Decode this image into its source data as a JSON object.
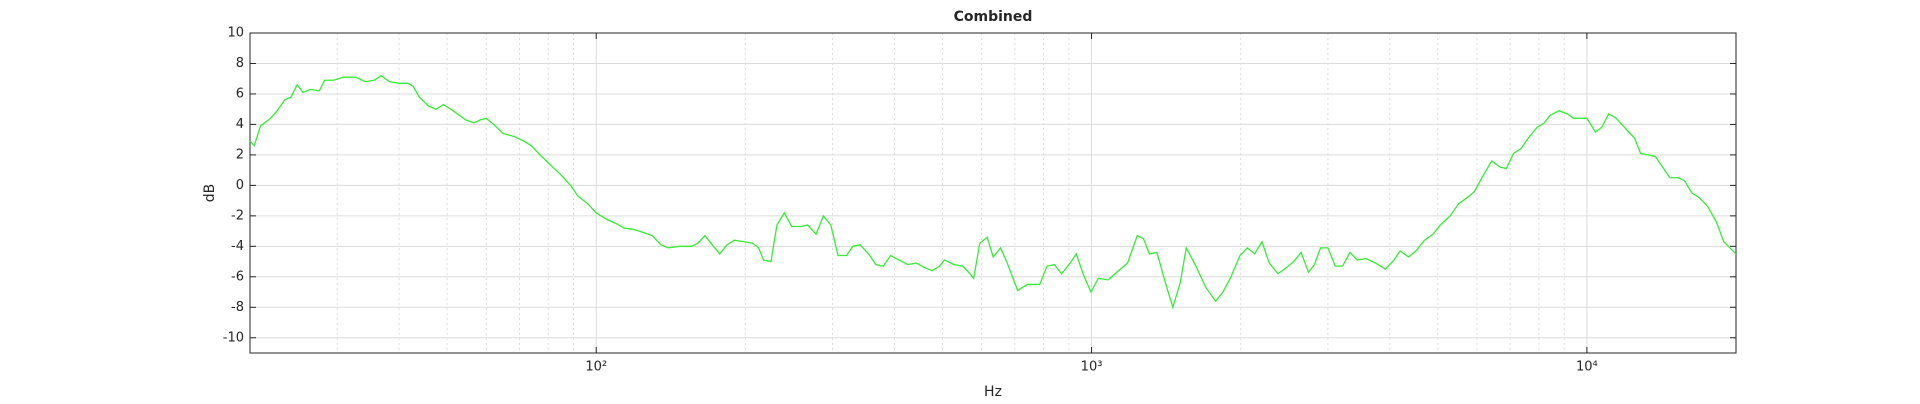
{
  "chart_data": {
    "type": "line",
    "title": "Combined",
    "xlabel": "Hz",
    "ylabel": "dB",
    "x_scale": "log",
    "grid": true,
    "xlim": [
      20,
      20000
    ],
    "ylim": [
      -11,
      10
    ],
    "xticks": [
      {
        "value": 100,
        "label": "10²"
      },
      {
        "value": 1000,
        "label": "10³"
      },
      {
        "value": 10000,
        "label": "10⁴"
      }
    ],
    "xminor_grid": [
      20,
      30,
      40,
      50,
      60,
      70,
      80,
      90,
      200,
      300,
      400,
      500,
      600,
      700,
      800,
      900,
      2000,
      3000,
      4000,
      5000,
      6000,
      7000,
      8000,
      9000
    ],
    "yticks": [
      -10,
      -8,
      -6,
      -4,
      -2,
      0,
      2,
      4,
      6,
      8,
      10
    ],
    "series": [
      {
        "name": "Combined",
        "color": "#33ee33",
        "x": [
          20,
          20.4,
          21,
          22,
          22.7,
          23.5,
          24.2,
          24.9,
          25.6,
          26.5,
          27.6,
          28.3,
          29.5,
          30.9,
          32.7,
          34.2,
          35.6,
          36.8,
          38.3,
          40.1,
          41.7,
          42.7,
          43.9,
          45.9,
          47.5,
          49.2,
          51.4,
          54.5,
          56.7,
          58.3,
          60,
          62.1,
          64.9,
          68.4,
          71.5,
          74,
          77,
          81.1,
          84.8,
          88.8,
          91.8,
          96.1,
          100,
          104.6,
          109.5,
          113.9,
          119.2,
          124.8,
          129.8,
          135.1,
          139.8,
          147.1,
          155.7,
          160.2,
          165.8,
          171.5,
          177.5,
          183.6,
          190,
          198.9,
          206.9,
          212.8,
          217.7,
          225.3,
          231.7,
          239.8,
          248.1,
          259.6,
          267.1,
          277.9,
          287.5,
          297.5,
          307.8,
          320.3,
          329.6,
          341,
          354.8,
          367.1,
          379.8,
          392.9,
          408.9,
          425.5,
          442.7,
          460.7,
          476.7,
          493.2,
          504.5,
          528,
          549.4,
          568.4,
          578.1,
          594.8,
          615.4,
          633.1,
          655.1,
          673.9,
          709.3,
          742.3,
          785.8,
          812.8,
          841,
          870.1,
          905.3,
          931.5,
          963.8,
          997.2,
          1032,
          1080,
          1124,
          1182,
          1237,
          1273,
          1309,
          1355,
          1410,
          1459,
          1510,
          1553,
          1625,
          1701,
          1780,
          1842,
          1906,
          1994,
          2063,
          2135,
          2208,
          2285,
          2378,
          2474,
          2560,
          2649,
          2741,
          2818,
          2899,
          3000,
          3105,
          3212,
          3324,
          3439,
          3578,
          3745,
          3920,
          4080,
          4197,
          4365,
          4518,
          4699,
          4891,
          5061,
          5296,
          5510,
          5733,
          5932,
          6138,
          6424,
          6685,
          6877,
          7112,
          7358,
          7612,
          7926,
          8200,
          8433,
          8776,
          9131,
          9395,
          10000,
          10406,
          10706,
          11076,
          11461,
          11993,
          12480,
          12839,
          13284,
          13745,
          14221,
          14714,
          15311,
          15750,
          16296,
          16861,
          17546,
          18259,
          18892,
          20000
        ],
        "values": [
          2.9,
          2.6,
          3.9,
          4.4,
          4.9,
          5.6,
          5.8,
          6.6,
          6.1,
          6.3,
          6.2,
          6.9,
          6.9,
          7.1,
          7.1,
          6.8,
          6.9,
          7.2,
          6.8,
          6.7,
          6.7,
          6.5,
          5.8,
          5.2,
          5.0,
          5.3,
          4.9,
          4.3,
          4.1,
          4.3,
          4.4,
          4.0,
          3.4,
          3.2,
          2.9,
          2.6,
          2.0,
          1.3,
          0.7,
          0,
          -0.7,
          -1.2,
          -1.8,
          -2.2,
          -2.5,
          -2.8,
          -2.9,
          -3.1,
          -3.3,
          -3.9,
          -4.1,
          -4.0,
          -4.0,
          -3.8,
          -3.3,
          -3.9,
          -4.5,
          -3.9,
          -3.6,
          -3.7,
          -3.8,
          -4.1,
          -4.9,
          -5.0,
          -2.6,
          -1.8,
          -2.7,
          -2.7,
          -2.6,
          -3.2,
          -2.0,
          -2.6,
          -4.6,
          -4.6,
          -4.0,
          -3.9,
          -4.5,
          -5.2,
          -5.3,
          -4.6,
          -4.9,
          -5.2,
          -5.1,
          -5.4,
          -5.6,
          -5.3,
          -4.9,
          -5.2,
          -5.3,
          -5.8,
          -6.1,
          -3.8,
          -3.4,
          -4.7,
          -4.1,
          -5.0,
          -6.9,
          -6.5,
          -6.5,
          -5.3,
          -5.2,
          -5.8,
          -5.1,
          -4.5,
          -5.9,
          -7.0,
          -6.1,
          -6.2,
          -5.7,
          -5.1,
          -3.3,
          -3.5,
          -4.5,
          -4.4,
          -6.4,
          -8.0,
          -6.4,
          -4.1,
          -5.3,
          -6.7,
          -7.6,
          -7.0,
          -6.1,
          -4.6,
          -4.1,
          -4.5,
          -3.7,
          -5.1,
          -5.8,
          -5.4,
          -5.0,
          -4.4,
          -5.7,
          -5.2,
          -4.1,
          -4.1,
          -5.3,
          -5.3,
          -4.4,
          -4.9,
          -4.8,
          -5.1,
          -5.5,
          -4.9,
          -4.3,
          -4.7,
          -4.3,
          -3.6,
          -3.2,
          -2.6,
          -2.0,
          -1.2,
          -0.8,
          -0.4,
          0.5,
          1.6,
          1.2,
          1.1,
          2.1,
          2.4,
          3.1,
          3.8,
          4.1,
          4.6,
          4.9,
          4.7,
          4.4,
          4.4,
          3.5,
          3.8,
          4.7,
          4.4,
          3.7,
          3.1,
          2.1,
          2.0,
          1.9,
          1.2,
          0.5,
          0.5,
          0.3,
          -0.5,
          -0.8,
          -1.4,
          -2.4,
          -3.7,
          -4.5
        ]
      }
    ]
  }
}
